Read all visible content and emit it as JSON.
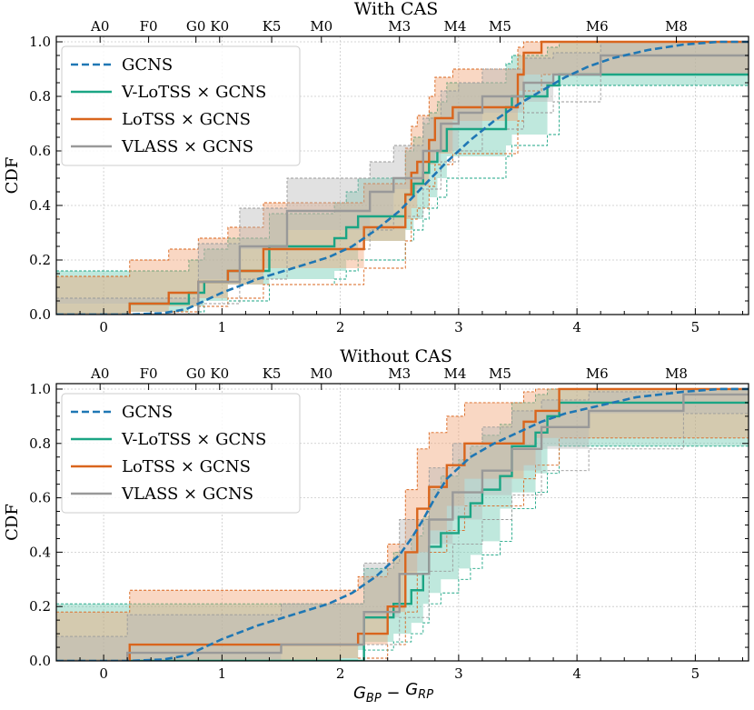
{
  "chart_data": [
    {
      "type": "line",
      "title": "With CAS",
      "xlabel": "",
      "ylabel": "CDF",
      "xlim": [
        -0.4,
        5.45
      ],
      "ylim": [
        0.0,
        1.02
      ],
      "grid": true,
      "legend_position": "top-left",
      "xticks": [
        "0",
        "1",
        "2",
        "3",
        "4",
        "5"
      ],
      "yticks": [
        "0.0",
        "0.2",
        "0.4",
        "0.6",
        "0.8",
        "1.0"
      ],
      "top_axis": [
        {
          "label": "A0",
          "x": -0.03
        },
        {
          "label": "F0",
          "x": 0.38
        },
        {
          "label": "G0",
          "x": 0.78
        },
        {
          "label": "K0",
          "x": 0.98
        },
        {
          "label": "K5",
          "x": 1.42
        },
        {
          "label": "M0",
          "x": 1.84
        },
        {
          "label": "M3",
          "x": 2.5
        },
        {
          "label": "M4",
          "x": 2.97
        },
        {
          "label": "M5",
          "x": 3.35
        },
        {
          "label": "M6",
          "x": 4.17
        },
        {
          "label": "M8",
          "x": 4.84
        }
      ],
      "series": [
        {
          "name": "GCNS",
          "style": "dashed",
          "color": "#1f77b4",
          "x": [
            -0.4,
            0.2,
            0.5,
            0.7,
            1.0,
            1.3,
            1.6,
            1.9,
            2.1,
            2.3,
            2.5,
            2.7,
            2.9,
            3.1,
            3.3,
            3.5,
            3.7,
            3.9,
            4.1,
            4.3,
            4.6,
            4.9,
            5.2,
            5.45
          ],
          "y": [
            0.0,
            0.0,
            0.005,
            0.02,
            0.08,
            0.13,
            0.17,
            0.21,
            0.25,
            0.31,
            0.38,
            0.47,
            0.56,
            0.64,
            0.71,
            0.77,
            0.82,
            0.87,
            0.91,
            0.94,
            0.97,
            0.99,
            1.0,
            1.0
          ]
        },
        {
          "name": "V-LoTSS × GCNS",
          "style": "step",
          "color": "#1ba584",
          "band_color": "#66c9ad",
          "x": [
            -0.4,
            0.22,
            0.72,
            0.85,
            1.05,
            1.4,
            1.95,
            2.05,
            2.15,
            2.55,
            2.62,
            2.7,
            2.75,
            2.82,
            2.9,
            3.4,
            3.45,
            3.75,
            3.85,
            5.45
          ],
          "y": [
            0.0,
            0.04,
            0.08,
            0.12,
            0.16,
            0.25,
            0.28,
            0.32,
            0.36,
            0.44,
            0.48,
            0.52,
            0.56,
            0.6,
            0.68,
            0.76,
            0.8,
            0.84,
            0.88,
            0.88
          ],
          "band_upper": [
            0.16,
            0.16,
            0.2,
            0.24,
            0.28,
            0.37,
            0.41,
            0.45,
            0.5,
            0.6,
            0.65,
            0.7,
            0.74,
            0.78,
            0.85,
            0.92,
            0.95,
            0.98,
            1.0,
            1.0
          ],
          "band_lower": [
            0.0,
            0.0,
            0.01,
            0.03,
            0.05,
            0.11,
            0.13,
            0.16,
            0.2,
            0.27,
            0.31,
            0.35,
            0.39,
            0.43,
            0.5,
            0.58,
            0.62,
            0.66,
            0.84,
            0.84
          ]
        },
        {
          "name": "LoTSS × GCNS",
          "style": "step",
          "color": "#d9651d",
          "band_color": "#f0a070",
          "x": [
            -0.4,
            0.22,
            0.55,
            0.8,
            1.05,
            1.35,
            2.2,
            2.55,
            2.6,
            2.65,
            2.75,
            2.8,
            2.95,
            3.5,
            3.55,
            3.7,
            3.8,
            5.45
          ],
          "y": [
            0.0,
            0.04,
            0.08,
            0.12,
            0.16,
            0.24,
            0.32,
            0.44,
            0.52,
            0.56,
            0.64,
            0.72,
            0.76,
            0.88,
            0.96,
            1.0,
            1.0,
            1.0
          ],
          "band_upper": [
            0.14,
            0.2,
            0.24,
            0.28,
            0.32,
            0.41,
            0.48,
            0.61,
            0.69,
            0.73,
            0.8,
            0.87,
            0.9,
            0.98,
            1.0,
            1.0,
            1.0,
            1.0
          ],
          "band_lower": [
            0.0,
            0.0,
            0.01,
            0.03,
            0.06,
            0.11,
            0.17,
            0.27,
            0.35,
            0.39,
            0.47,
            0.55,
            0.59,
            0.71,
            0.82,
            0.88,
            0.88,
            0.88
          ]
        },
        {
          "name": "VLASS × GCNS",
          "style": "step",
          "color": "#999999",
          "band_color": "#b8b8b8",
          "x": [
            -0.4,
            0.8,
            1.15,
            1.55,
            2.25,
            2.45,
            2.7,
            2.85,
            3.0,
            3.2,
            3.55,
            3.8,
            4.2,
            5.45
          ],
          "y": [
            0.0,
            0.12,
            0.25,
            0.38,
            0.45,
            0.5,
            0.6,
            0.7,
            0.74,
            0.8,
            0.85,
            0.88,
            0.95,
            0.95
          ],
          "band_upper": [
            0.06,
            0.26,
            0.39,
            0.5,
            0.56,
            0.62,
            0.72,
            0.82,
            0.85,
            0.9,
            0.94,
            0.96,
            1.0,
            1.0
          ],
          "band_lower": [
            0.0,
            0.04,
            0.13,
            0.24,
            0.31,
            0.36,
            0.46,
            0.56,
            0.6,
            0.68,
            0.74,
            0.78,
            0.88,
            0.88
          ]
        }
      ]
    },
    {
      "type": "line",
      "title": "Without CAS",
      "xlabel": "G_{BP} − G_{RP}",
      "ylabel": "CDF",
      "xlim": [
        -0.4,
        5.45
      ],
      "ylim": [
        0.0,
        1.02
      ],
      "grid": true,
      "legend_position": "top-left",
      "xticks": [
        "0",
        "1",
        "2",
        "3",
        "4",
        "5"
      ],
      "yticks": [
        "0.0",
        "0.2",
        "0.4",
        "0.6",
        "0.8",
        "1.0"
      ],
      "top_axis": [
        {
          "label": "A0",
          "x": -0.03
        },
        {
          "label": "F0",
          "x": 0.38
        },
        {
          "label": "G0",
          "x": 0.78
        },
        {
          "label": "K0",
          "x": 0.98
        },
        {
          "label": "K5",
          "x": 1.42
        },
        {
          "label": "M0",
          "x": 1.84
        },
        {
          "label": "M3",
          "x": 2.5
        },
        {
          "label": "M4",
          "x": 2.97
        },
        {
          "label": "M5",
          "x": 3.35
        },
        {
          "label": "M6",
          "x": 4.17
        },
        {
          "label": "M8",
          "x": 4.84
        }
      ],
      "series": [
        {
          "name": "GCNS",
          "style": "dashed",
          "color": "#1f77b4",
          "x": [
            -0.4,
            0.2,
            0.5,
            0.7,
            1.0,
            1.3,
            1.6,
            1.9,
            2.1,
            2.3,
            2.5,
            2.6,
            2.7,
            2.8,
            2.9,
            3.1,
            3.3,
            3.5,
            3.7,
            3.9,
            4.2,
            4.5,
            4.9,
            5.2,
            5.45
          ],
          "y": [
            0.0,
            0.0,
            0.005,
            0.02,
            0.08,
            0.13,
            0.17,
            0.21,
            0.25,
            0.31,
            0.39,
            0.45,
            0.52,
            0.6,
            0.67,
            0.75,
            0.8,
            0.84,
            0.88,
            0.91,
            0.94,
            0.97,
            0.99,
            1.0,
            1.0
          ]
        },
        {
          "name": "V-LoTSS × GCNS",
          "style": "step",
          "color": "#1ba584",
          "band_color": "#66c9ad",
          "x": [
            -0.4,
            2.15,
            2.2,
            2.45,
            2.6,
            2.7,
            2.75,
            2.85,
            3.0,
            3.1,
            3.2,
            3.35,
            3.45,
            3.65,
            3.75,
            3.85,
            5.45
          ],
          "y": [
            0.0,
            0.0,
            0.16,
            0.21,
            0.26,
            0.32,
            0.42,
            0.47,
            0.53,
            0.58,
            0.63,
            0.68,
            0.79,
            0.84,
            0.9,
            0.95,
            0.95
          ],
          "band_upper": [
            0.21,
            0.21,
            0.34,
            0.4,
            0.46,
            0.53,
            0.63,
            0.68,
            0.74,
            0.79,
            0.83,
            0.87,
            0.95,
            0.98,
            1.0,
            1.0,
            1.0
          ],
          "band_lower": [
            0.0,
            0.0,
            0.04,
            0.07,
            0.1,
            0.14,
            0.21,
            0.25,
            0.3,
            0.34,
            0.39,
            0.44,
            0.56,
            0.62,
            0.69,
            0.79,
            0.79
          ]
        },
        {
          "name": "LoTSS × GCNS",
          "style": "step",
          "color": "#d9651d",
          "band_color": "#f0a070",
          "x": [
            -0.4,
            0.22,
            2.0,
            2.15,
            2.4,
            2.55,
            2.65,
            2.75,
            2.9,
            3.05,
            3.55,
            3.65,
            3.85,
            5.45
          ],
          "y": [
            0.0,
            0.06,
            0.06,
            0.1,
            0.2,
            0.4,
            0.56,
            0.64,
            0.72,
            0.8,
            0.88,
            0.92,
            1.0,
            1.0
          ],
          "band_upper": [
            0.18,
            0.26,
            0.26,
            0.31,
            0.43,
            0.63,
            0.78,
            0.84,
            0.9,
            0.95,
            0.99,
            1.0,
            1.0,
            1.0
          ],
          "band_lower": [
            0.0,
            0.0,
            0.0,
            0.01,
            0.06,
            0.18,
            0.32,
            0.4,
            0.48,
            0.57,
            0.67,
            0.72,
            0.82,
            0.82
          ]
        },
        {
          "name": "VLASS × GCNS",
          "style": "step",
          "color": "#999999",
          "band_color": "#b8b8b8",
          "x": [
            -0.4,
            0.2,
            1.5,
            2.2,
            2.5,
            2.75,
            2.95,
            3.2,
            3.45,
            3.7,
            4.1,
            4.9,
            5.45
          ],
          "y": [
            0.0,
            0.03,
            0.06,
            0.18,
            0.32,
            0.52,
            0.62,
            0.7,
            0.78,
            0.86,
            0.92,
            0.98,
            0.98
          ],
          "band_upper": [
            0.09,
            0.17,
            0.21,
            0.36,
            0.52,
            0.71,
            0.8,
            0.86,
            0.92,
            0.96,
            0.99,
            1.0,
            1.0
          ],
          "band_lower": [
            0.0,
            0.0,
            0.0,
            0.06,
            0.16,
            0.33,
            0.43,
            0.52,
            0.61,
            0.7,
            0.78,
            0.91,
            0.91
          ]
        }
      ]
    }
  ]
}
